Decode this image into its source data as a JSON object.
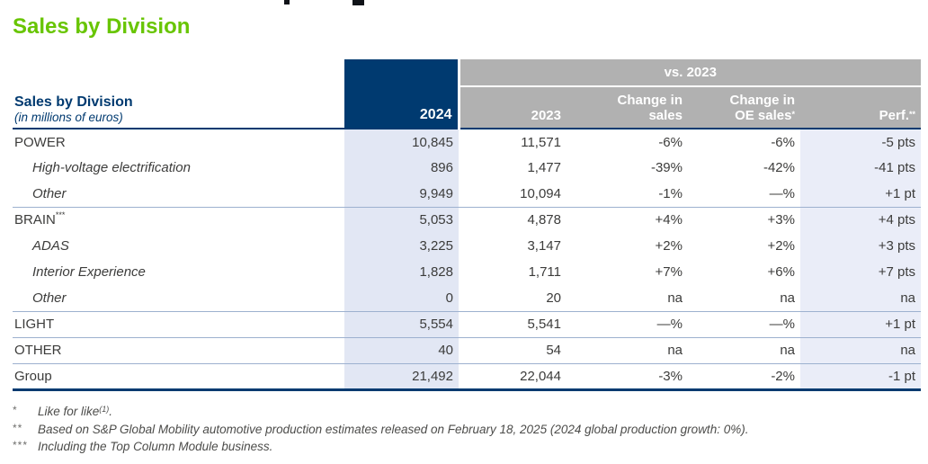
{
  "page_title": "Sales by Division",
  "table": {
    "header": {
      "label_title": "Sales by Division",
      "label_subtitle": "(in millions of euros)",
      "col_2024": "2024",
      "vs_group": "vs. 2023",
      "col_2023": "2023",
      "col_change_sales_line1": "Change in",
      "col_change_sales_line2": "sales",
      "col_change_oe_line1": "Change in",
      "col_change_oe_line2": "OE sales",
      "col_change_oe_sup": "*",
      "col_perf": "Perf.",
      "col_perf_sup": "**"
    },
    "rows": [
      {
        "label": "POWER",
        "label_sup": "",
        "v2024": "10,845",
        "v2023": "11,571",
        "chg_sales": "-6%",
        "chg_oe": "-6%",
        "perf": "-5 pts"
      },
      {
        "label": "High-voltage electrification",
        "label_sup": "",
        "v2024": "896",
        "v2023": "1,477",
        "chg_sales": "-39%",
        "chg_oe": "-42%",
        "perf": "-41 pts"
      },
      {
        "label": "Other",
        "label_sup": "",
        "v2024": "9,949",
        "v2023": "10,094",
        "chg_sales": "-1%",
        "chg_oe": "—%",
        "perf": "+1 pt"
      },
      {
        "label": "BRAIN",
        "label_sup": "***",
        "v2024": "5,053",
        "v2023": "4,878",
        "chg_sales": "+4%",
        "chg_oe": "+3%",
        "perf": "+4 pts"
      },
      {
        "label": "ADAS",
        "label_sup": "",
        "v2024": "3,225",
        "v2023": "3,147",
        "chg_sales": "+2%",
        "chg_oe": "+2%",
        "perf": "+3 pts"
      },
      {
        "label": "Interior Experience",
        "label_sup": "",
        "v2024": "1,828",
        "v2023": "1,711",
        "chg_sales": "+7%",
        "chg_oe": "+6%",
        "perf": "+7 pts"
      },
      {
        "label": "Other",
        "label_sup": "",
        "v2024": "0",
        "v2023": "20",
        "chg_sales": "na",
        "chg_oe": "na",
        "perf": "na"
      },
      {
        "label": "LIGHT",
        "label_sup": "",
        "v2024": "5,554",
        "v2023": "5,541",
        "chg_sales": "—%",
        "chg_oe": "—%",
        "perf": "+1 pt"
      },
      {
        "label": "OTHER",
        "label_sup": "",
        "v2024": "40",
        "v2023": "54",
        "chg_sales": "na",
        "chg_oe": "na",
        "perf": "na"
      },
      {
        "label": "Group",
        "label_sup": "",
        "v2024": "21,492",
        "v2023": "22,044",
        "chg_sales": "-3%",
        "chg_oe": "-2%",
        "perf": "-1 pt"
      }
    ]
  },
  "footnotes": [
    {
      "marker": "*",
      "text": "Like for like",
      "sup": "(1)",
      "tail": "."
    },
    {
      "marker": "**",
      "text": "Based on S&P Global Mobility automotive production estimates released on February 18, 2025 (2024 global production growth: 0%).",
      "sup": "",
      "tail": ""
    },
    {
      "marker": "***",
      "text": "Including the Top Column Module business.",
      "sup": "",
      "tail": ""
    }
  ],
  "colors": {
    "title_green": "#68c502",
    "header_navy": "#003a70",
    "header_gray": "#b1b1b1",
    "col_2024_bg": "#e2e7f4",
    "col_perf_bg": "#eaedf8",
    "row_separator": "#9db1cf",
    "body_text": "#3c3c3b",
    "footnote_text": "#4c4c4a"
  }
}
